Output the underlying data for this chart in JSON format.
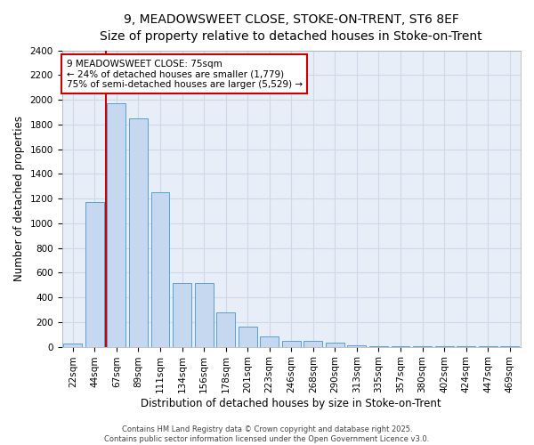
{
  "title_line1": "9, MEADOWSWEET CLOSE, STOKE-ON-TRENT, ST6 8EF",
  "title_line2": "Size of property relative to detached houses in Stoke-on-Trent",
  "xlabel": "Distribution of detached houses by size in Stoke-on-Trent",
  "ylabel": "Number of detached properties",
  "categories": [
    "22sqm",
    "44sqm",
    "67sqm",
    "89sqm",
    "111sqm",
    "134sqm",
    "156sqm",
    "178sqm",
    "201sqm",
    "223sqm",
    "246sqm",
    "268sqm",
    "290sqm",
    "313sqm",
    "335sqm",
    "357sqm",
    "380sqm",
    "402sqm",
    "424sqm",
    "447sqm",
    "469sqm"
  ],
  "values": [
    25,
    1175,
    1975,
    1850,
    1250,
    515,
    515,
    275,
    160,
    85,
    45,
    45,
    35,
    15,
    5,
    5,
    2,
    2,
    1,
    1,
    1
  ],
  "bar_color": "#c5d8f0",
  "bar_edge_color": "#5a9fd4",
  "vline_x": 1.5,
  "annotation_text": "9 MEADOWSWEET CLOSE: 75sqm\n← 24% of detached houses are smaller (1,779)\n75% of semi-detached houses are larger (5,529) →",
  "annotation_box_color": "#ffffff",
  "annotation_box_edge": "#cc0000",
  "vline_color": "#cc0000",
  "ylim": [
    0,
    2400
  ],
  "yticks": [
    0,
    200,
    400,
    600,
    800,
    1000,
    1200,
    1400,
    1600,
    1800,
    2000,
    2200,
    2400
  ],
  "background_color": "#e8eef8",
  "grid_color": "#d0d8e8",
  "footer_text": "Contains HM Land Registry data © Crown copyright and database right 2025.\nContains public sector information licensed under the Open Government Licence v3.0.",
  "title_fontsize": 10,
  "subtitle_fontsize": 9,
  "axis_label_fontsize": 8.5,
  "tick_fontsize": 7.5,
  "annotation_fontsize": 7.5
}
